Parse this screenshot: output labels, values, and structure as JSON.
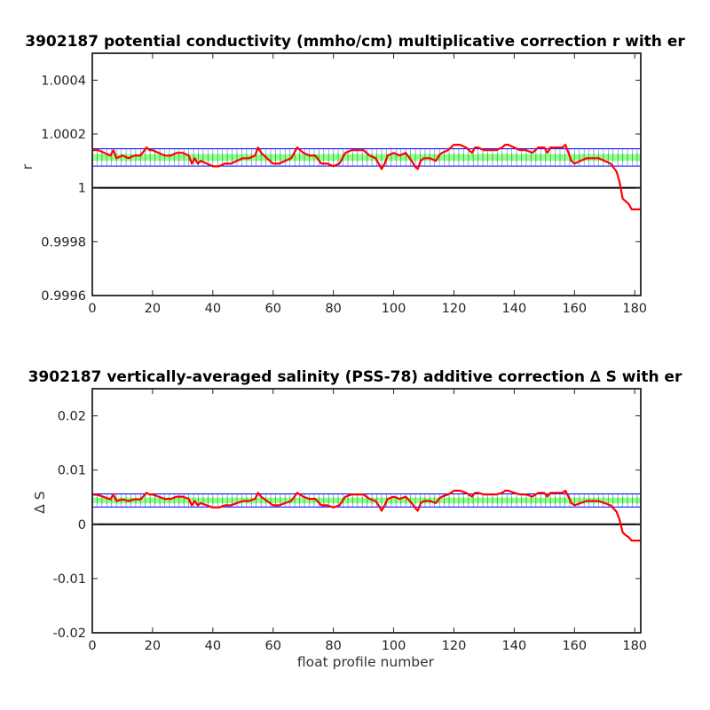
{
  "chart_data": [
    {
      "type": "line",
      "title": "3902187 potential conductivity (mmho/cm) multiplicative correction r with er",
      "xlabel": "",
      "ylabel": "r",
      "xlim": [
        0,
        182
      ],
      "ylim": [
        0.9996,
        1.0005
      ],
      "xticks": [
        0,
        20,
        40,
        60,
        80,
        100,
        120,
        140,
        160,
        180
      ],
      "xtick_labels": [
        "0",
        "20",
        "40",
        "60",
        "80",
        "100",
        "120",
        "140",
        "160",
        "180"
      ],
      "yticks": [
        0.9996,
        0.9998,
        1.0,
        1.0002,
        1.0004
      ],
      "ytick_labels": [
        "0.9996",
        "0.9998",
        "1",
        "1.0002",
        "1.0004"
      ],
      "grid": false,
      "reference_line": 1.0,
      "band_center": 1.000113,
      "band_green_half": 1.2e-05,
      "band_blue_half": 3.2e-05,
      "series": [
        {
          "color": "#ff0000",
          "x": [
            0,
            2,
            4,
            6,
            7,
            8,
            10,
            12,
            14,
            16,
            18,
            19,
            20,
            22,
            24,
            26,
            28,
            30,
            32,
            33,
            34,
            35,
            36,
            38,
            40,
            42,
            44,
            46,
            48,
            50,
            52,
            54,
            55,
            56,
            58,
            60,
            62,
            64,
            66,
            68,
            70,
            72,
            74,
            76,
            78,
            80,
            82,
            84,
            86,
            88,
            90,
            92,
            94,
            95,
            96,
            97,
            98,
            100,
            102,
            104,
            106,
            107,
            108,
            109,
            110,
            112,
            114,
            115,
            116,
            118,
            119,
            120,
            122,
            124,
            126,
            127,
            128,
            130,
            132,
            134,
            136,
            137,
            138,
            140,
            142,
            144,
            146,
            148,
            150,
            151,
            152,
            154,
            156,
            157,
            158,
            159,
            160,
            162,
            164,
            166,
            168,
            170,
            172,
            174,
            175,
            176,
            177,
            178,
            179,
            180,
            181,
            182
          ],
          "y": [
            1.00014,
            1.00014,
            1.00013,
            1.00012,
            1.00014,
            1.00011,
            1.00012,
            1.00011,
            1.00012,
            1.00012,
            1.00015,
            1.00014,
            1.00014,
            1.00013,
            1.00012,
            1.00012,
            1.00013,
            1.00013,
            1.00012,
            1.00009,
            1.00011,
            1.00009,
            1.0001,
            1.00009,
            1.00008,
            1.00008,
            1.00009,
            1.00009,
            1.0001,
            1.00011,
            1.00011,
            1.00012,
            1.00015,
            1.00013,
            1.00011,
            1.00009,
            1.00009,
            1.0001,
            1.00011,
            1.00015,
            1.00013,
            1.00012,
            1.00012,
            1.00009,
            1.00009,
            1.00008,
            1.00009,
            1.00013,
            1.00014,
            1.00014,
            1.00014,
            1.00012,
            1.00011,
            1.00009,
            1.00007,
            1.00009,
            1.00012,
            1.00013,
            1.00012,
            1.00013,
            1.0001,
            1.00008,
            1.00007,
            1.0001,
            1.00011,
            1.00011,
            1.0001,
            1.00012,
            1.00013,
            1.00014,
            1.00015,
            1.00016,
            1.00016,
            1.00015,
            1.00013,
            1.00015,
            1.00015,
            1.00014,
            1.00014,
            1.00014,
            1.00015,
            1.00016,
            1.00016,
            1.00015,
            1.00014,
            1.00014,
            1.00013,
            1.00015,
            1.00015,
            1.00013,
            1.00015,
            1.00015,
            1.00015,
            1.00016,
            1.00013,
            1.0001,
            1.00009,
            1.0001,
            1.00011,
            1.00011,
            1.00011,
            1.0001,
            1.00009,
            1.00006,
            1.00002,
            0.99996,
            0.99995,
            0.99994,
            0.99992,
            0.99992,
            0.99992,
            0.99992
          ]
        }
      ]
    },
    {
      "type": "line",
      "title": "3902187 vertically-averaged salinity (PSS-78) additive correction ∆ S with er",
      "xlabel": "float profile number",
      "ylabel": "∆ S",
      "xlim": [
        0,
        182
      ],
      "ylim": [
        -0.02,
        0.025
      ],
      "xticks": [
        0,
        20,
        40,
        60,
        80,
        100,
        120,
        140,
        160,
        180
      ],
      "xtick_labels": [
        "0",
        "20",
        "40",
        "60",
        "80",
        "100",
        "120",
        "140",
        "160",
        "180"
      ],
      "yticks": [
        -0.02,
        -0.01,
        0,
        0.01,
        0.02
      ],
      "ytick_labels": [
        "-0.02",
        "-0.01",
        "0",
        "0.01",
        "0.02"
      ],
      "grid": false,
      "reference_line": 0,
      "band_center": 0.0044,
      "band_green_half": 0.0005,
      "band_blue_half": 0.0012,
      "series": [
        {
          "color": "#ff0000",
          "x": [
            0,
            2,
            4,
            6,
            7,
            8,
            10,
            12,
            14,
            16,
            18,
            19,
            20,
            22,
            24,
            26,
            28,
            30,
            32,
            33,
            34,
            35,
            36,
            38,
            40,
            42,
            44,
            46,
            48,
            50,
            52,
            54,
            55,
            56,
            58,
            60,
            62,
            64,
            66,
            68,
            70,
            72,
            74,
            76,
            78,
            80,
            82,
            84,
            86,
            88,
            90,
            92,
            94,
            95,
            96,
            97,
            98,
            100,
            102,
            104,
            106,
            107,
            108,
            109,
            110,
            112,
            114,
            115,
            116,
            118,
            119,
            120,
            122,
            124,
            126,
            127,
            128,
            130,
            132,
            134,
            136,
            137,
            138,
            140,
            142,
            144,
            146,
            148,
            150,
            151,
            152,
            154,
            156,
            157,
            158,
            159,
            160,
            162,
            164,
            166,
            168,
            170,
            172,
            174,
            175,
            176,
            177,
            178,
            179,
            180,
            181,
            182
          ],
          "y": [
            0.0055,
            0.0054,
            0.005,
            0.0046,
            0.0055,
            0.0043,
            0.0046,
            0.0043,
            0.0046,
            0.0046,
            0.0058,
            0.0055,
            0.0055,
            0.0051,
            0.0047,
            0.0047,
            0.0051,
            0.0051,
            0.0047,
            0.0035,
            0.0043,
            0.0035,
            0.0039,
            0.0035,
            0.0031,
            0.0031,
            0.0035,
            0.0035,
            0.0039,
            0.0043,
            0.0043,
            0.0047,
            0.0058,
            0.0051,
            0.0043,
            0.0035,
            0.0035,
            0.0039,
            0.0043,
            0.0058,
            0.0051,
            0.0047,
            0.0047,
            0.0035,
            0.0035,
            0.0031,
            0.0035,
            0.0051,
            0.0055,
            0.0055,
            0.0055,
            0.0047,
            0.0043,
            0.0035,
            0.0025,
            0.0035,
            0.0047,
            0.0051,
            0.0047,
            0.0051,
            0.0039,
            0.0031,
            0.0025,
            0.0039,
            0.0043,
            0.0043,
            0.0039,
            0.0047,
            0.0051,
            0.0055,
            0.0058,
            0.0062,
            0.0062,
            0.0058,
            0.0051,
            0.0058,
            0.0058,
            0.0055,
            0.0055,
            0.0055,
            0.0058,
            0.0062,
            0.0062,
            0.0058,
            0.0055,
            0.0055,
            0.0051,
            0.0058,
            0.0058,
            0.0051,
            0.0058,
            0.0058,
            0.0058,
            0.0062,
            0.0051,
            0.0039,
            0.0035,
            0.0039,
            0.0043,
            0.0043,
            0.0043,
            0.0039,
            0.0035,
            0.0023,
            0.0008,
            -0.0015,
            -0.002,
            -0.0024,
            -0.003,
            -0.003,
            -0.003,
            -0.003
          ]
        }
      ]
    }
  ]
}
